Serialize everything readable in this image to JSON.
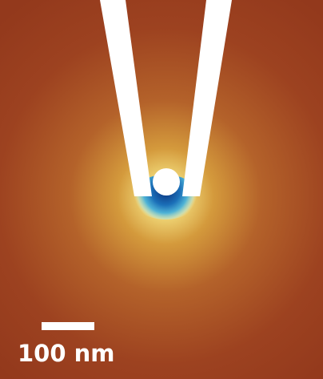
{
  "scale_bar": {
    "label": "100 nm"
  }
}
